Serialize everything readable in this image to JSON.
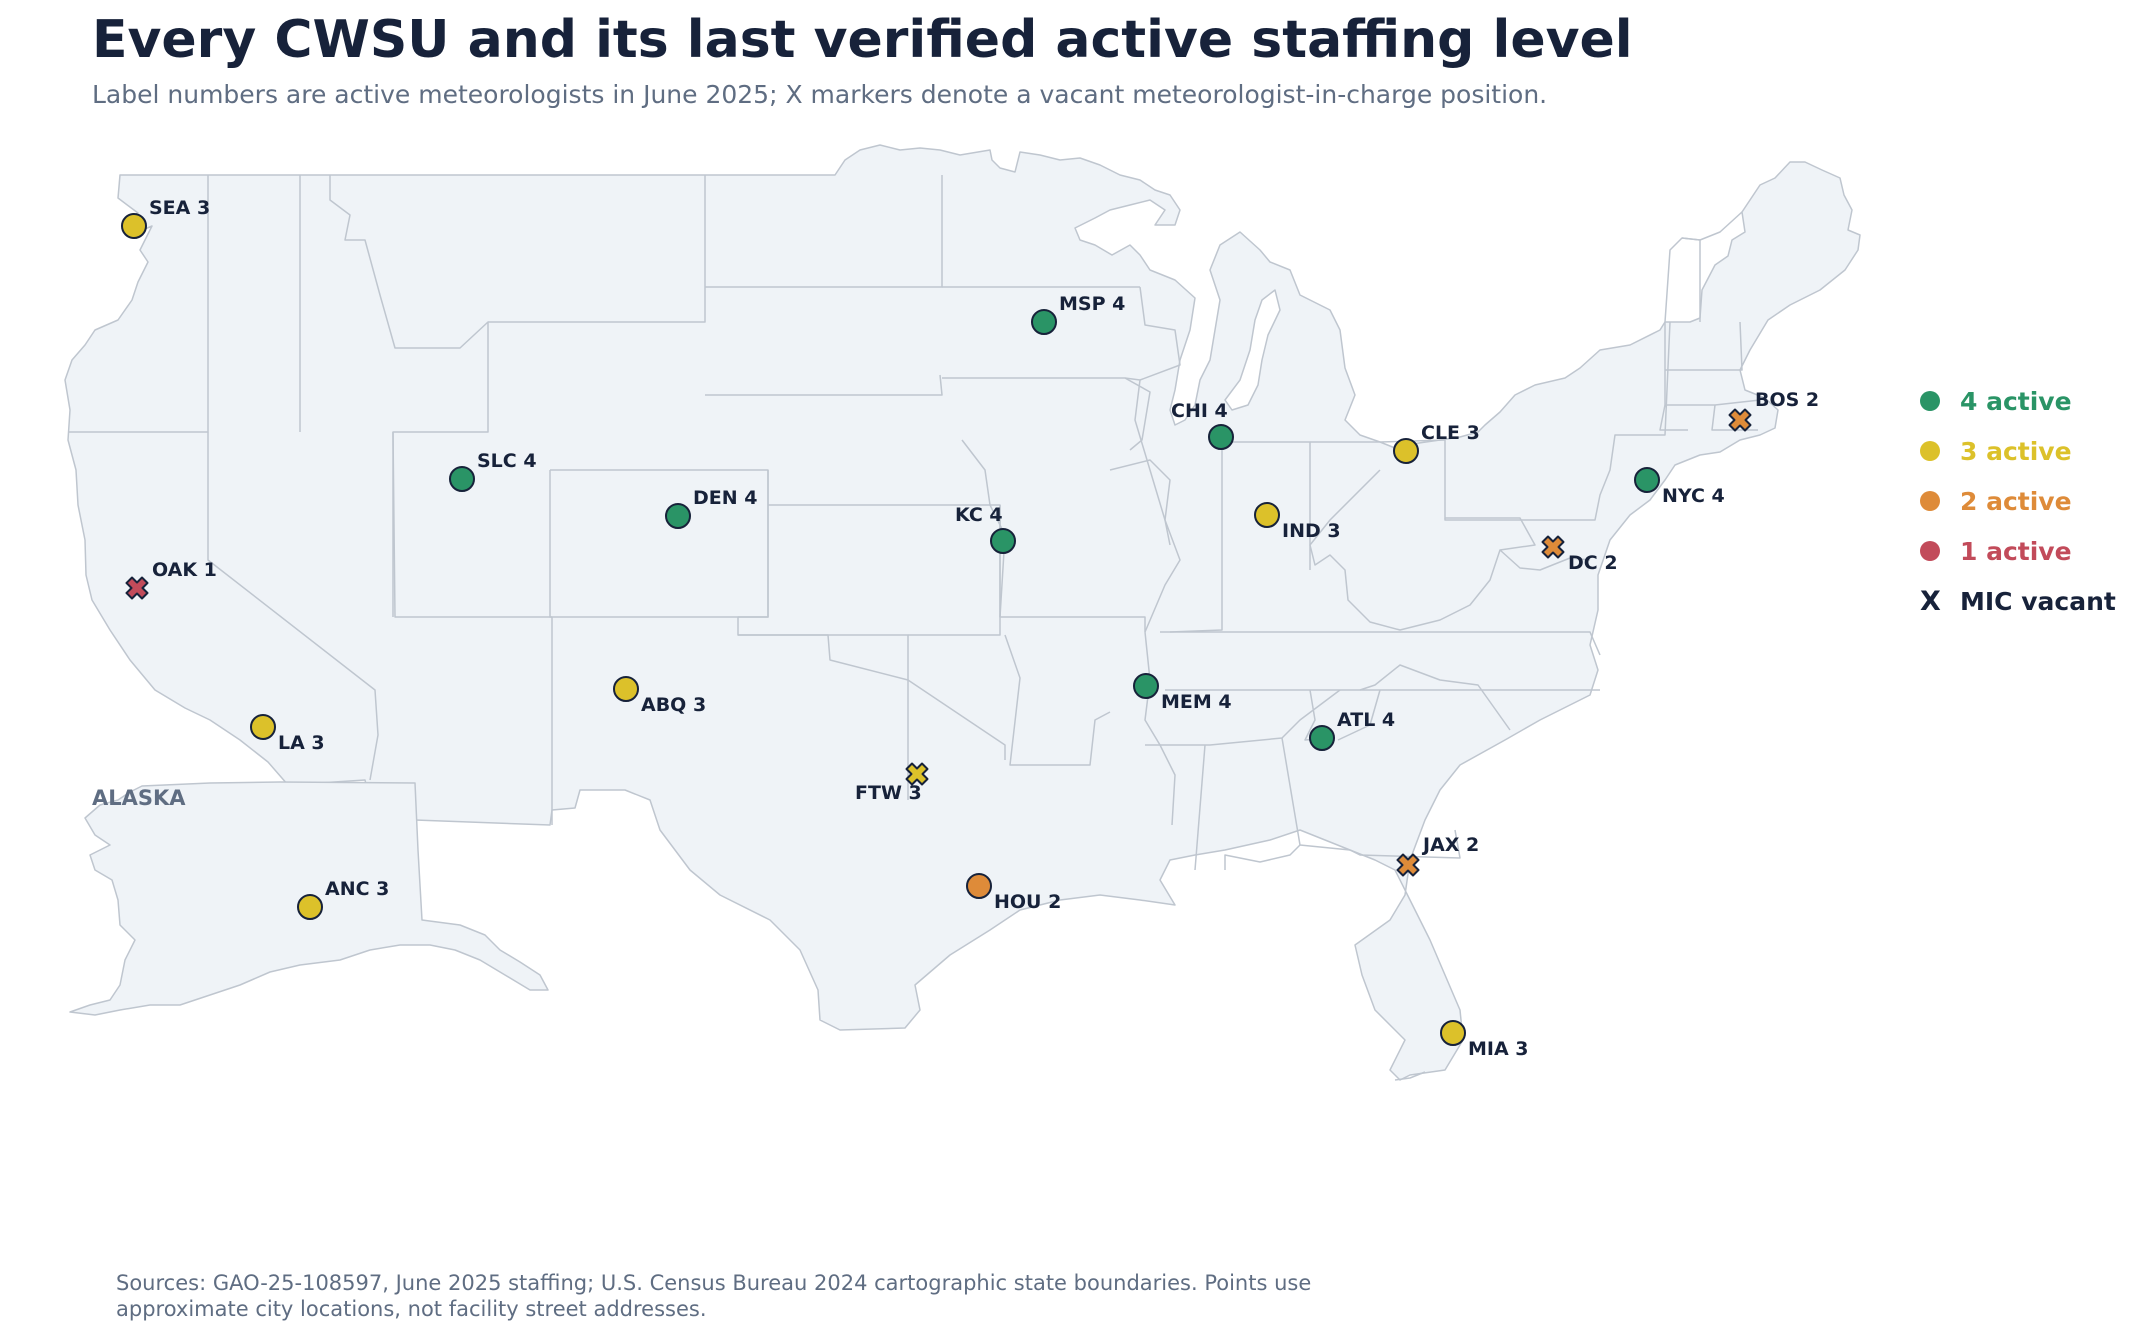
{
  "title": "Every CWSU and its last verified active staffing level",
  "subtitle": "Label numbers are active meteorologists in June 2025; X markers denote a vacant meteorologist-in-charge position.",
  "inset_label": "ALASKA",
  "colors": {
    "land": "#eff3f7",
    "border": "#bfc6cf",
    "text": "#17223a",
    "muted": "#5f6d82",
    "active_4": "#2a9466",
    "active_3": "#dcc12a",
    "active_2": "#de8b39",
    "active_1": "#c24b5a"
  },
  "legend": [
    {
      "level": 4,
      "label": "4 active",
      "color": "#2a9466"
    },
    {
      "level": 3,
      "label": "3 active",
      "color": "#dcc12a"
    },
    {
      "level": 2,
      "label": "2 active",
      "color": "#de8b39"
    },
    {
      "level": 1,
      "label": "1 active",
      "color": "#c24b5a"
    }
  ],
  "legend_vacant": {
    "symbol": "X",
    "label": "MIC vacant"
  },
  "cwsus": [
    {
      "code": "SEA",
      "active": 3,
      "mic_vacant": false,
      "lon": -122.3,
      "lat": 47.6
    },
    {
      "code": "MSP",
      "active": 4,
      "mic_vacant": false,
      "lon": -93.3,
      "lat": 44.9
    },
    {
      "code": "CHI",
      "active": 4,
      "mic_vacant": false,
      "lon": -88.0,
      "lat": 41.9
    },
    {
      "code": "CLE",
      "active": 3,
      "mic_vacant": false,
      "lon": -81.7,
      "lat": 41.5
    },
    {
      "code": "BOS",
      "active": 2,
      "mic_vacant": true,
      "lon": -71.1,
      "lat": 42.4
    },
    {
      "code": "NYC",
      "active": 4,
      "mic_vacant": false,
      "lon": -73.9,
      "lat": 40.7
    },
    {
      "code": "SLC",
      "active": 4,
      "mic_vacant": false,
      "lon": -111.9,
      "lat": 40.8
    },
    {
      "code": "DEN",
      "active": 4,
      "mic_vacant": false,
      "lon": -104.9,
      "lat": 39.7
    },
    {
      "code": "KC",
      "active": 4,
      "mic_vacant": false,
      "lon": -94.6,
      "lat": 39.1
    },
    {
      "code": "IND",
      "active": 3,
      "mic_vacant": false,
      "lon": -86.2,
      "lat": 39.8
    },
    {
      "code": "DC",
      "active": 2,
      "mic_vacant": true,
      "lon": -77.0,
      "lat": 38.9
    },
    {
      "code": "OAK",
      "active": 1,
      "mic_vacant": true,
      "lon": -122.3,
      "lat": 37.8
    },
    {
      "code": "ABQ",
      "active": 3,
      "mic_vacant": false,
      "lon": -106.6,
      "lat": 35.1
    },
    {
      "code": "MEM",
      "active": 4,
      "mic_vacant": false,
      "lon": -90.0,
      "lat": 35.1
    },
    {
      "code": "ATL",
      "active": 4,
      "mic_vacant": false,
      "lon": -84.4,
      "lat": 33.7
    },
    {
      "code": "LA",
      "active": 3,
      "mic_vacant": false,
      "lon": -118.2,
      "lat": 34.1
    },
    {
      "code": "FTW",
      "active": 3,
      "mic_vacant": true,
      "lon": -97.3,
      "lat": 32.8
    },
    {
      "code": "JAX",
      "active": 2,
      "mic_vacant": true,
      "lon": -81.7,
      "lat": 30.3
    },
    {
      "code": "HOU",
      "active": 2,
      "mic_vacant": false,
      "lon": -95.4,
      "lat": 29.8
    },
    {
      "code": "MIA",
      "active": 3,
      "mic_vacant": false,
      "lon": -80.2,
      "lat": 25.8
    },
    {
      "code": "ANC",
      "active": 3,
      "mic_vacant": false,
      "lon": -149.9,
      "lat": 61.2
    }
  ],
  "source_lines": [
    "Sources: GAO-25-108597, June 2025 staffing; U.S. Census Bureau 2024 cartographic state boundaries. Points use",
    "approximate city locations, not facility street addresses."
  ]
}
